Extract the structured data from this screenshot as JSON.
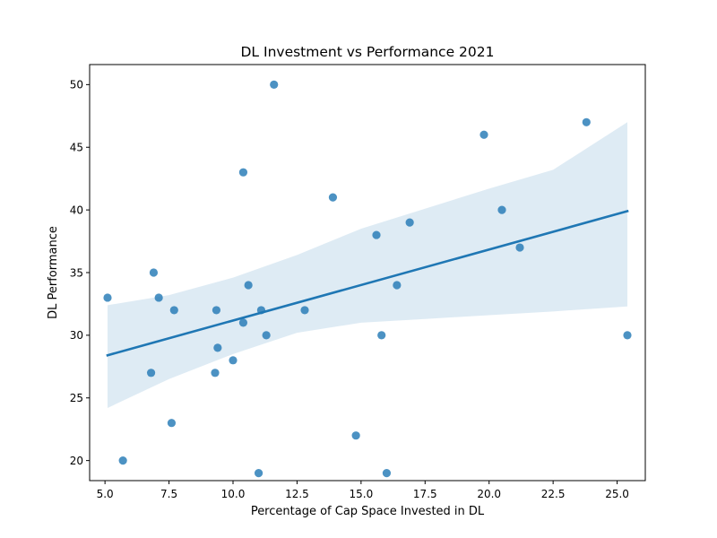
{
  "chart_data": {
    "type": "scatter",
    "title": "DL Investment vs Performance 2021",
    "xlabel": "Percentage of Cap Space Invested in DL",
    "ylabel": "DL Performance",
    "xlim": [
      4.4,
      26.1
    ],
    "ylim": [
      18.4,
      51.6
    ],
    "xticks": [
      5.0,
      7.5,
      10.0,
      12.5,
      15.0,
      17.5,
      20.0,
      22.5,
      25.0
    ],
    "xtick_labels": [
      "5.0",
      "7.5",
      "10.0",
      "12.5",
      "15.0",
      "17.5",
      "20.0",
      "22.5",
      "25.0"
    ],
    "yticks": [
      20,
      25,
      30,
      35,
      40,
      45,
      50
    ],
    "ytick_labels": [
      "20",
      "25",
      "30",
      "35",
      "40",
      "45",
      "50"
    ],
    "grid": false,
    "point_color": "#1f77b4",
    "line_color": "#1f77b4",
    "band_color": "#1f77b4",
    "points": [
      {
        "x": 5.1,
        "y": 33
      },
      {
        "x": 5.7,
        "y": 20
      },
      {
        "x": 6.8,
        "y": 27
      },
      {
        "x": 6.9,
        "y": 35
      },
      {
        "x": 7.1,
        "y": 33
      },
      {
        "x": 7.6,
        "y": 23
      },
      {
        "x": 7.7,
        "y": 32
      },
      {
        "x": 9.3,
        "y": 27
      },
      {
        "x": 9.35,
        "y": 32
      },
      {
        "x": 9.4,
        "y": 29
      },
      {
        "x": 10.0,
        "y": 28
      },
      {
        "x": 10.4,
        "y": 43
      },
      {
        "x": 10.4,
        "y": 31
      },
      {
        "x": 10.6,
        "y": 34
      },
      {
        "x": 11.0,
        "y": 19
      },
      {
        "x": 11.1,
        "y": 32
      },
      {
        "x": 11.3,
        "y": 30
      },
      {
        "x": 11.6,
        "y": 50
      },
      {
        "x": 12.8,
        "y": 32
      },
      {
        "x": 13.9,
        "y": 41
      },
      {
        "x": 14.8,
        "y": 22
      },
      {
        "x": 15.6,
        "y": 38
      },
      {
        "x": 15.8,
        "y": 30
      },
      {
        "x": 16.0,
        "y": 19
      },
      {
        "x": 16.4,
        "y": 34
      },
      {
        "x": 16.9,
        "y": 39
      },
      {
        "x": 19.8,
        "y": 46
      },
      {
        "x": 20.5,
        "y": 40
      },
      {
        "x": 21.2,
        "y": 37
      },
      {
        "x": 23.8,
        "y": 47
      },
      {
        "x": 25.4,
        "y": 30
      }
    ],
    "regression": {
      "x": [
        5.1,
        25.4
      ],
      "y": [
        28.4,
        39.9
      ]
    },
    "confidence_band": {
      "x": [
        5.1,
        7.5,
        10.0,
        12.5,
        15.0,
        17.5,
        20.0,
        22.5,
        25.4
      ],
      "lower": [
        24.2,
        26.5,
        28.5,
        30.2,
        31.0,
        31.3,
        31.6,
        31.9,
        32.3
      ],
      "upper": [
        32.4,
        33.2,
        34.6,
        36.4,
        38.5,
        40.1,
        41.7,
        43.2,
        47.0
      ]
    }
  }
}
